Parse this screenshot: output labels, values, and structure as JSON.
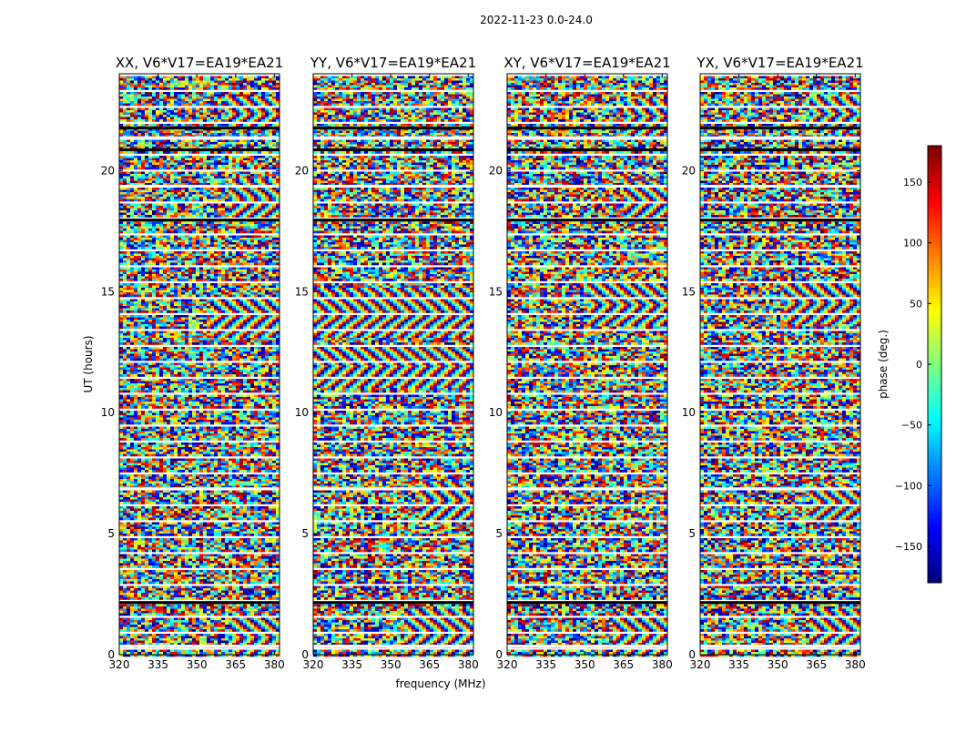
{
  "chart_data": {
    "type": "heatmap",
    "title": "2022-11-23 0.0-24.0",
    "xlabel": "frequency (MHz)",
    "ylabel": "UT (hours)",
    "colorbar_label": "phase (deg.)",
    "xlim": [
      320,
      382
    ],
    "ylim": [
      0,
      24
    ],
    "x_ticks": [
      320,
      335,
      350,
      365,
      380
    ],
    "x_tick_labels": [
      "320",
      "335",
      "350",
      "365",
      "380"
    ],
    "y_ticks": [
      0,
      5,
      10,
      15,
      20
    ],
    "y_tick_labels": [
      "0",
      "5",
      "10",
      "15",
      "20"
    ],
    "colorbar_range": [
      -180,
      180
    ],
    "colorbar_ticks": [
      -150,
      -100,
      -50,
      0,
      50,
      100,
      150
    ],
    "colorbar_tick_labels": [
      "−150",
      "−100",
      "−50",
      "0",
      "50",
      "100",
      "150"
    ],
    "colormap": [
      "#00007f",
      "#0000ff",
      "#007fff",
      "#00ffff",
      "#7fff7f",
      "#ffff00",
      "#ff7f00",
      "#ff0000",
      "#7f0000"
    ],
    "panels": [
      {
        "title": "XX, V6*V17=EA19*EA21",
        "fringe_bands": [
          {
            "t": 0.8,
            "f_start": 362,
            "amp": 0.9
          },
          {
            "t": 14.1,
            "f_start": 355,
            "amp": 0.6
          },
          {
            "t": 18.9,
            "f_start": 362,
            "amp": 0.4
          },
          {
            "t": 22.4,
            "f_start": 360,
            "amp": 0.3
          }
        ],
        "flagged_hours": [
          0.3,
          2.1,
          6.8,
          17.9,
          19.3,
          20.8,
          21.3,
          21.7
        ]
      },
      {
        "title": "YY, V6*V17=EA19*EA21",
        "fringe_bands": [
          {
            "t": 1.0,
            "f_start": 355,
            "amp": 0.9
          },
          {
            "t": 14.2,
            "f_start": 320,
            "amp": 0.8
          },
          {
            "t": 6.5,
            "f_start": 360,
            "amp": 0.4
          },
          {
            "t": 12.0,
            "f_start": 320,
            "amp": 0.5
          }
        ],
        "flagged_hours": [
          0.3,
          2.1,
          6.8,
          17.9,
          19.3,
          20.8,
          21.3,
          21.7
        ]
      },
      {
        "title": "XY, V6*V17=EA19*EA21",
        "fringe_bands": [
          {
            "t": 1.0,
            "f_start": 360,
            "amp": 0.7
          },
          {
            "t": 14.5,
            "f_start": 350,
            "amp": 0.6
          },
          {
            "t": 18.8,
            "f_start": 365,
            "amp": 0.4
          },
          {
            "t": 22.3,
            "f_start": 365,
            "amp": 0.3
          }
        ],
        "flagged_hours": [
          0.3,
          2.1,
          6.8,
          17.9,
          19.3,
          20.8,
          21.3,
          21.7
        ]
      },
      {
        "title": "YX, V6*V17=EA19*EA21",
        "fringe_bands": [
          {
            "t": 1.1,
            "f_start": 362,
            "amp": 0.7
          },
          {
            "t": 14.6,
            "f_start": 352,
            "amp": 0.6
          },
          {
            "t": 6.4,
            "f_start": 362,
            "amp": 0.4
          },
          {
            "t": 22.4,
            "f_start": 362,
            "amp": 0.3
          }
        ],
        "flagged_hours": [
          0.3,
          2.1,
          6.8,
          17.9,
          19.3,
          20.8,
          21.3,
          21.7
        ]
      }
    ]
  }
}
